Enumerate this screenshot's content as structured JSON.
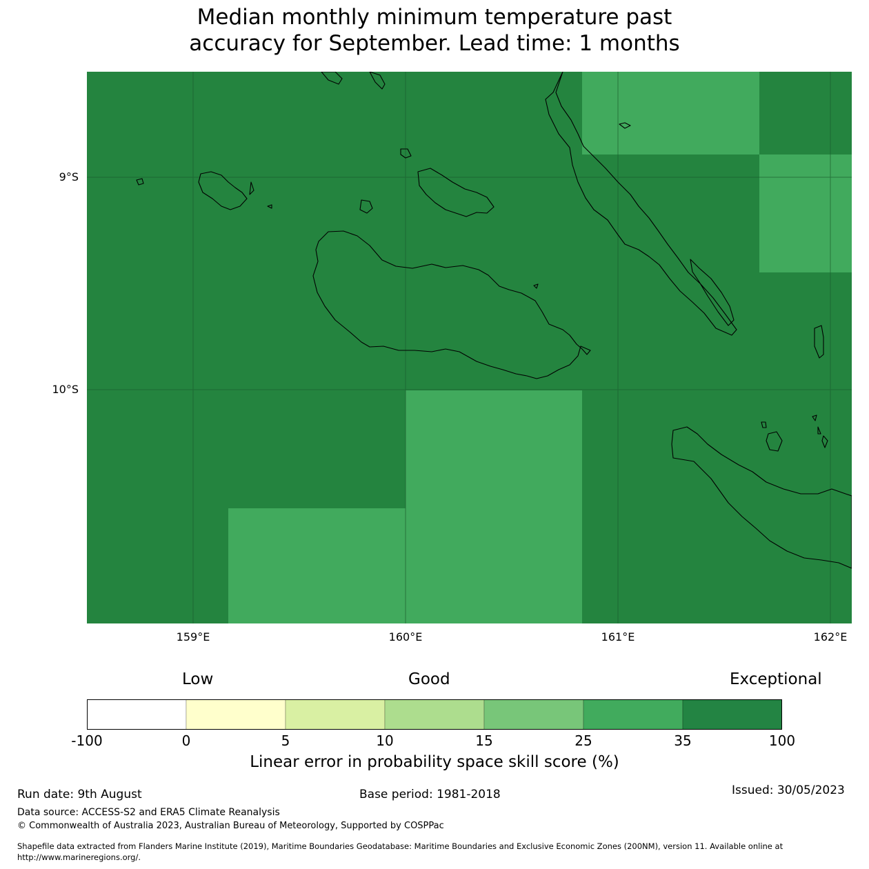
{
  "title": {
    "line1": "Median monthly minimum temperature past",
    "line2": "accuracy for September. Lead time: 1 months"
  },
  "map": {
    "lat_labels": [
      "9°S",
      "10°S"
    ],
    "lon_labels": [
      "159°E",
      "160°E",
      "161°E",
      "162°E"
    ],
    "colors": {
      "exceptional": "#24843f",
      "good_high": "#41aa5d",
      "grid": "#1b5e2e",
      "coast": "#000000"
    }
  },
  "colorbar": {
    "headings": {
      "low": "Low",
      "good": "Good",
      "exceptional": "Exceptional"
    },
    "ticks": [
      "-100",
      "0",
      "5",
      "10",
      "15",
      "25",
      "35",
      "100"
    ],
    "colors": [
      "#ffffff",
      "#ffffcc",
      "#d9f0a3",
      "#addd8e",
      "#78c679",
      "#41ab5d",
      "#238443"
    ],
    "title": "Linear error in probability space skill score (%)"
  },
  "footer": {
    "run_date": "Run date: 9th August",
    "base_period": "Base period: 1981-2018",
    "issued": "Issued: 30/05/2023",
    "data_source": "Data source: ACCESS-S2 and ERA5 Climate Reanalysis",
    "copyright": "© Commonwealth of Australia 2023, Australian Bureau of Meteorology, Supported by COSPPac",
    "shapefile_line1": "Shapefile data extracted from Flanders Marine Institute (2019), Maritime Boundaries Geodatabase: Maritime Boundaries and Exclusive Economic Zones (200NM), version 11. Available online at",
    "shapefile_line2": "http://www.marineregions.org/."
  }
}
